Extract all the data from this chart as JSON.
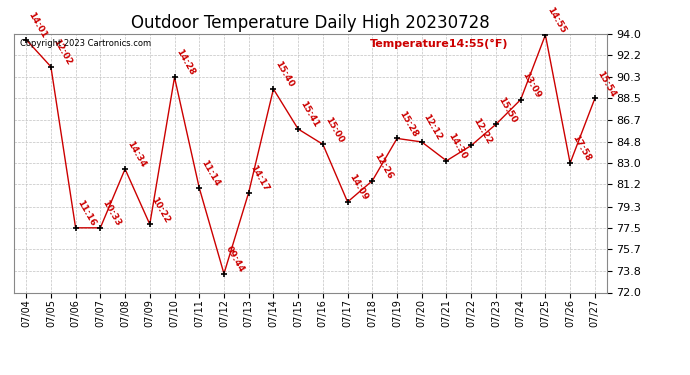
{
  "title": "Outdoor Temperature Daily High 20230728",
  "copyright_text": "Copyright 2023 Cartronics.com",
  "legend_text": "Temperature14:55(°F)",
  "x_labels": [
    "07/04",
    "07/05",
    "07/06",
    "07/07",
    "07/08",
    "07/09",
    "07/10",
    "07/11",
    "07/12",
    "07/13",
    "07/14",
    "07/15",
    "07/16",
    "07/17",
    "07/18",
    "07/19",
    "07/20",
    "07/21",
    "07/22",
    "07/23",
    "07/24",
    "07/25",
    "07/26",
    "07/27"
  ],
  "y_values": [
    93.5,
    91.2,
    77.5,
    77.5,
    82.5,
    77.8,
    90.3,
    80.9,
    73.6,
    80.5,
    89.3,
    85.9,
    84.6,
    79.7,
    81.5,
    85.1,
    84.8,
    83.2,
    84.5,
    86.3,
    88.4,
    93.9,
    83.0,
    88.5
  ],
  "time_labels": [
    "14:01",
    "12:02",
    "11:16",
    "10:33",
    "14:34",
    "10:22",
    "14:28",
    "11:14",
    "09:44",
    "14:17",
    "15:40",
    "15:41",
    "15:00",
    "14:09",
    "12:26",
    "15:28",
    "12:12",
    "14:30",
    "12:22",
    "15:50",
    "13:09",
    "14:55",
    "17:58",
    "15:54"
  ],
  "line_color": "#cc0000",
  "marker_color": "#000000",
  "bg_color": "#ffffff",
  "grid_color": "#bbbbbb",
  "text_color_red": "#cc0000",
  "text_color_black": "#000000",
  "ylim": [
    72.0,
    94.0
  ],
  "yticks": [
    72.0,
    73.8,
    75.7,
    77.5,
    79.3,
    81.2,
    83.0,
    84.8,
    86.7,
    88.5,
    90.3,
    92.2,
    94.0
  ],
  "title_fontsize": 12,
  "label_fontsize": 6.5
}
